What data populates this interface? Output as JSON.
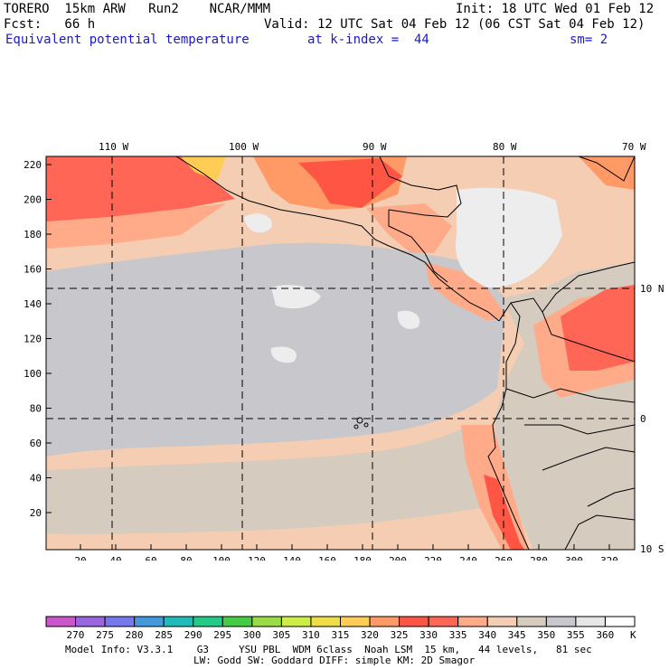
{
  "header": {
    "model": "TORERO  15km ARW   Run2    NCAR/MMM",
    "init": "Init: 18 UTC Wed 01 Feb 12",
    "fcst": "Fcst:   66 h",
    "valid": "Valid: 12 UTC Sat 04 Feb 12 (06 CST Sat 04 Feb 12)",
    "field": "Equivalent potential temperature",
    "kindex": "at k-index =  44",
    "sm": "sm= 2"
  },
  "map": {
    "lon_labels": [
      "110 W",
      "100 W",
      "90 W",
      "80 W",
      "70 W"
    ],
    "lat_labels": [
      "10 N",
      "0",
      "10 S"
    ],
    "y_ticks": [
      "220",
      "200",
      "180",
      "160",
      "140",
      "120",
      "100",
      "80",
      "60",
      "40",
      "20"
    ],
    "x_ticks": [
      "20",
      "40",
      "60",
      "80",
      "100",
      "120",
      "140",
      "160",
      "180",
      "200",
      "220",
      "240",
      "260",
      "280",
      "300",
      "320"
    ]
  },
  "colorbar": {
    "labels": [
      "270",
      "275",
      "280",
      "285",
      "290",
      "295",
      "300",
      "305",
      "310",
      "315",
      "320",
      "325",
      "330",
      "335",
      "340",
      "345",
      "350",
      "355",
      "360"
    ],
    "unit": "K",
    "colors": [
      "#cc55cc",
      "#9966dd",
      "#7777ee",
      "#4499dd",
      "#22bbbb",
      "#22cc88",
      "#44cc44",
      "#99dd44",
      "#ccee44",
      "#eedd44",
      "#ffcc55",
      "#ff9966",
      "#ff5544",
      "#ff6655",
      "#ffaa88",
      "#f5cdb2",
      "#d6cbbf",
      "#c8c8cc",
      "#e6e6e6",
      "#ffffff"
    ]
  },
  "footer": {
    "line1": "Model Info: V3.3.1    G3     YSU PBL  WDM 6class  Noah LSM  15 km,   44 levels,   81 sec",
    "line2": "LW: Godd SW: Goddard DIFF: simple KM: 2D Smagor"
  }
}
